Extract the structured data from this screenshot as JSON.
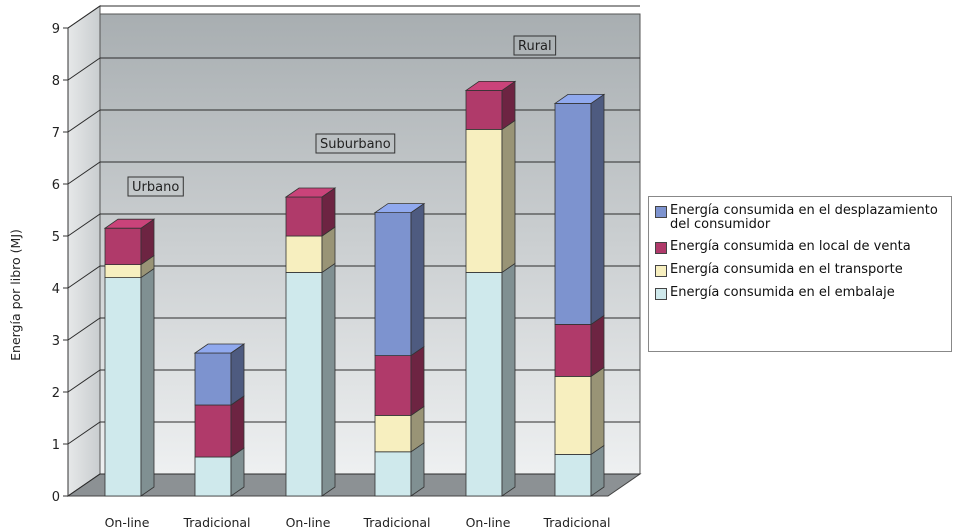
{
  "chart_data": {
    "type": "bar",
    "stacked": true,
    "three_d": true,
    "categories": [
      "On-line",
      "Tradicional",
      "On-line",
      "Tradicional",
      "On-line",
      "Tradicional"
    ],
    "ylabel": "Energía por libro (MJ)",
    "xlabel": "",
    "ylim": [
      0,
      9
    ],
    "yticks": [
      0,
      1,
      2,
      3,
      4,
      5,
      6,
      7,
      8,
      9
    ],
    "grid": true,
    "legend_position": "right",
    "group_annotations": [
      "Urbano",
      "Suburbano",
      "Rural"
    ],
    "series": [
      {
        "name": "Energía consumida en el embalaje",
        "color": "#cfe9ec",
        "values": [
          4.2,
          0.75,
          4.3,
          0.85,
          4.3,
          0.8
        ]
      },
      {
        "name": "Energía consumida en el transporte",
        "color": "#f7efbf",
        "values": [
          0.25,
          0.0,
          0.7,
          0.7,
          2.75,
          1.5
        ]
      },
      {
        "name": "Energía consumida en local de venta",
        "color": "#b03a6a",
        "values": [
          0.7,
          1.0,
          0.75,
          1.15,
          0.75,
          1.0
        ]
      },
      {
        "name": "Energía consumida en el desplazamiento del consumidor",
        "color": "#7d93cf",
        "values": [
          0.0,
          1.0,
          0.0,
          2.75,
          0.0,
          4.25
        ]
      }
    ]
  }
}
